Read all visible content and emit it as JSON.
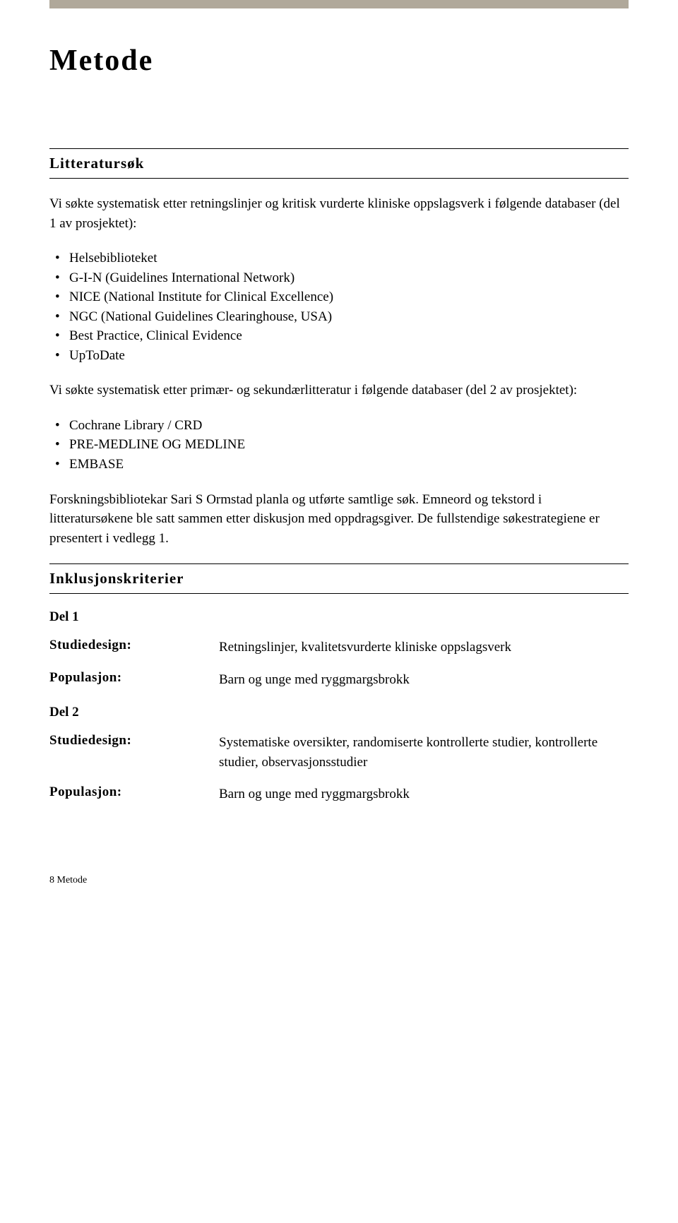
{
  "title": "Metode",
  "sections": {
    "litteratursok": {
      "heading": "Litteratursøk",
      "intro1": "Vi søkte systematisk etter retningslinjer og kritisk vurderte kliniske oppslagsverk i følgende databaser (del 1 av prosjektet):",
      "list1": [
        "Helsebiblioteket",
        "G-I-N (Guidelines International Network)",
        "NICE (National Institute for Clinical Excellence)",
        "NGC (National Guidelines Clearinghouse, USA)",
        "Best Practice, Clinical Evidence",
        "UpToDate"
      ],
      "intro2": "Vi søkte systematisk etter primær- og sekundærlitteratur i følgende databaser (del 2 av prosjektet):",
      "list2": [
        "Cochrane Library / CRD",
        "PRE-MEDLINE OG MEDLINE",
        "EMBASE"
      ],
      "para3": "Forskningsbibliotekar Sari S Ormstad planla og utførte samtlige søk. Emneord og tekstord i litteratursøkene ble satt sammen etter diskusjon med oppdragsgiver. De fullstendige søkestrategiene er presentert i vedlegg 1."
    },
    "inklusjon": {
      "heading": "Inklusjonskriterier",
      "del1": {
        "title": "Del 1",
        "rows": [
          {
            "label": "Studiedesign:",
            "value": "Retningslinjer, kvalitetsvurderte kliniske oppslagsverk"
          },
          {
            "label": "Populasjon:",
            "value": "Barn og unge med ryggmargsbrokk"
          }
        ]
      },
      "del2": {
        "title": "Del 2",
        "rows": [
          {
            "label": "Studiedesign:",
            "value": "Systematiske oversikter, randomiserte kontrollerte studier, kontrollerte studier, observasjonsstudier"
          },
          {
            "label": "Populasjon:",
            "value": "Barn og unge med ryggmargsbrokk"
          }
        ]
      }
    }
  },
  "footer": "8  Metode"
}
